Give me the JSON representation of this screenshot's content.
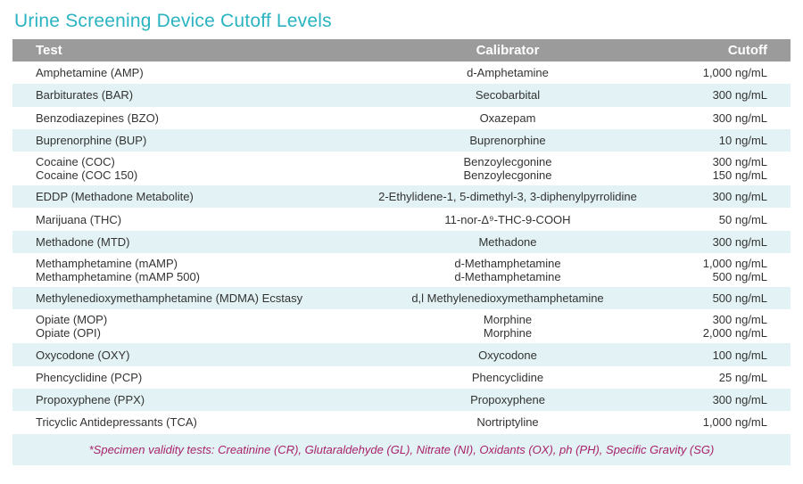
{
  "title": "Urine Screening Device Cutoff Levels",
  "columns": {
    "test": "Test",
    "calibrator": "Calibrator",
    "cutoff": "Cutoff"
  },
  "rows": [
    {
      "test": [
        "Amphetamine (AMP)"
      ],
      "calibrator": [
        "d-Amphetamine"
      ],
      "cutoff": [
        "1,000 ng/mL"
      ]
    },
    {
      "test": [
        "Barbiturates (BAR)"
      ],
      "calibrator": [
        "Secobarbital"
      ],
      "cutoff": [
        "300 ng/mL"
      ]
    },
    {
      "test": [
        "Benzodiazepines (BZO)"
      ],
      "calibrator": [
        "Oxazepam"
      ],
      "cutoff": [
        "300 ng/mL"
      ]
    },
    {
      "test": [
        "Buprenorphine (BUP)"
      ],
      "calibrator": [
        "Buprenorphine"
      ],
      "cutoff": [
        "10 ng/mL"
      ]
    },
    {
      "test": [
        "Cocaine (COC)",
        "Cocaine (COC 150)"
      ],
      "calibrator": [
        "Benzoylecgonine",
        "Benzoylecgonine"
      ],
      "cutoff": [
        "300 ng/mL",
        "150 ng/mL"
      ]
    },
    {
      "test": [
        "EDDP (Methadone Metabolite)"
      ],
      "calibrator": [
        "2-Ethylidene-1, 5-dimethyl-3, 3-diphenylpyrrolidine"
      ],
      "cutoff": [
        "300 ng/mL"
      ]
    },
    {
      "test": [
        "Marijuana (THC)"
      ],
      "calibrator": [
        "11-nor-Δ⁹-THC-9-COOH"
      ],
      "cutoff": [
        "50 ng/mL"
      ]
    },
    {
      "test": [
        "Methadone (MTD)"
      ],
      "calibrator": [
        "Methadone"
      ],
      "cutoff": [
        "300 ng/mL"
      ]
    },
    {
      "test": [
        "Methamphetamine (mAMP)",
        "Methamphetamine (mAMP 500)"
      ],
      "calibrator": [
        "d-Methamphetamine",
        "d-Methamphetamine"
      ],
      "cutoff": [
        "1,000 ng/mL",
        "500 ng/mL"
      ]
    },
    {
      "test": [
        "Methylenedioxymethamphetamine (MDMA) Ecstasy"
      ],
      "calibrator": [
        "d,l Methylenedioxymethamphetamine"
      ],
      "cutoff": [
        "500 ng/mL"
      ]
    },
    {
      "test": [
        "Opiate (MOP)",
        "Opiate (OPI)"
      ],
      "calibrator": [
        "Morphine",
        "Morphine"
      ],
      "cutoff": [
        "300 ng/mL",
        "2,000 ng/mL"
      ]
    },
    {
      "test": [
        "Oxycodone (OXY)"
      ],
      "calibrator": [
        "Oxycodone"
      ],
      "cutoff": [
        "100 ng/mL"
      ]
    },
    {
      "test": [
        "Phencyclidine (PCP)"
      ],
      "calibrator": [
        "Phencyclidine"
      ],
      "cutoff": [
        "25 ng/mL"
      ]
    },
    {
      "test": [
        "Propoxyphene (PPX)"
      ],
      "calibrator": [
        "Propoxyphene"
      ],
      "cutoff": [
        "300 ng/mL"
      ]
    },
    {
      "test": [
        "Tricyclic Antidepressants (TCA)"
      ],
      "calibrator": [
        "Nortriptyline"
      ],
      "cutoff": [
        "1,000 ng/mL"
      ]
    }
  ],
  "footnote": "*Specimen validity tests: Creatinine (CR), Glutaraldehyde (GL), Nitrate (NI), Oxidants (OX), ph (PH), Specific Gravity (SG)",
  "colors": {
    "title": "#2ab3c1",
    "header_bg": "#9b9b9b",
    "stripe": "#e3f2f4",
    "footnote": "#a8236b"
  }
}
